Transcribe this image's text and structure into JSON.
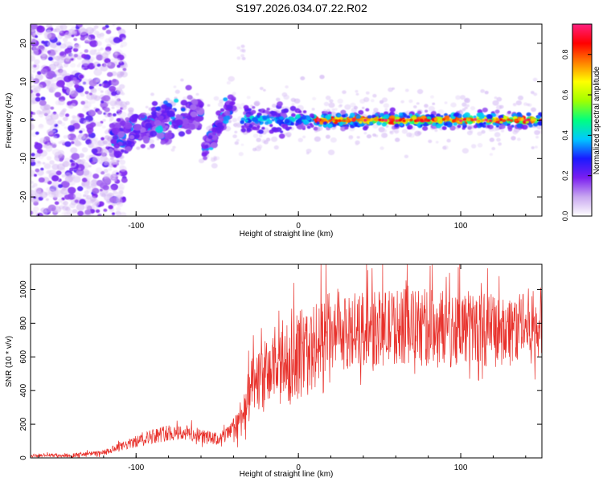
{
  "title": "S197.2026.034.07.22.R02",
  "colors": {
    "axis": "#000000",
    "snr_line": "#e8312b",
    "grid_tick": "#000000"
  },
  "chart_data": [
    {
      "type": "heatmap",
      "name": "spectrogram",
      "xlabel": "Height of straight line (km)",
      "ylabel": "Frequency (Hz)",
      "xlim": [
        -165,
        150
      ],
      "ylim": [
        -25,
        25
      ],
      "xticks": [
        -100,
        0,
        100
      ],
      "xtick_labels": [
        "-100",
        "0",
        "100"
      ],
      "yticks": [
        -20,
        -10,
        0,
        10,
        20
      ],
      "ytick_labels": [
        "-20",
        "-10",
        "0",
        "10",
        "20"
      ],
      "colorbar": {
        "label": "Normalized spectral amplitude",
        "range": [
          0,
          0.95
        ],
        "ticks": [
          0,
          0.2,
          0.4,
          0.6,
          0.8
        ],
        "tick_labels": [
          "0.0",
          "0.2",
          "0.4",
          "0.6",
          "0.8"
        ],
        "colormap": [
          "#ffffff",
          "#c9a8f0",
          "#7a1ef0",
          "#1a1aff",
          "#00c8ff",
          "#00ff80",
          "#a0ff00",
          "#ffff00",
          "#ff8000",
          "#ff0000",
          "#ff2080"
        ]
      },
      "features": [
        {
          "segment": "noise",
          "x_range": [
            -165,
            -108
          ],
          "freq_spread": 24,
          "amplitude": 0.1
        },
        {
          "segment": "early_signal",
          "x_range": [
            -115,
            -60
          ],
          "center_freq": [
            -5,
            5
          ],
          "amplitude": 0.3
        },
        {
          "segment": "dip",
          "x_range": [
            -58,
            -40
          ],
          "center_freq": [
            -8,
            6
          ],
          "amplitude": 0.35
        },
        {
          "segment": "stable_carrier",
          "x_range": [
            -35,
            150
          ],
          "center_freq": 0,
          "amplitude": 0.85
        }
      ]
    },
    {
      "type": "line",
      "name": "snr",
      "xlabel": "Height of straight line (km)",
      "ylabel": "SNR (10 * v/v)",
      "xlim": [
        -165,
        150
      ],
      "ylim": [
        0,
        1150
      ],
      "xticks": [
        -100,
        0,
        100
      ],
      "xtick_labels": [
        "-100",
        "0",
        "100"
      ],
      "yticks": [
        0,
        200,
        400,
        600,
        800,
        1000
      ],
      "ytick_labels": [
        "0",
        "200",
        "400",
        "600",
        "800",
        "1000"
      ],
      "trend": {
        "x": [
          -165,
          -140,
          -120,
          -105,
          -90,
          -80,
          -70,
          -60,
          -50,
          -42,
          -35,
          -28,
          -20,
          -12,
          -5,
          0,
          10,
          20,
          30,
          40,
          60,
          80,
          100,
          120,
          150
        ],
        "y": [
          15,
          15,
          30,
          80,
          130,
          150,
          150,
          130,
          110,
          150,
          250,
          420,
          490,
          520,
          560,
          620,
          640,
          700,
          740,
          760,
          780,
          780,
          780,
          760,
          790
        ]
      }
    }
  ]
}
